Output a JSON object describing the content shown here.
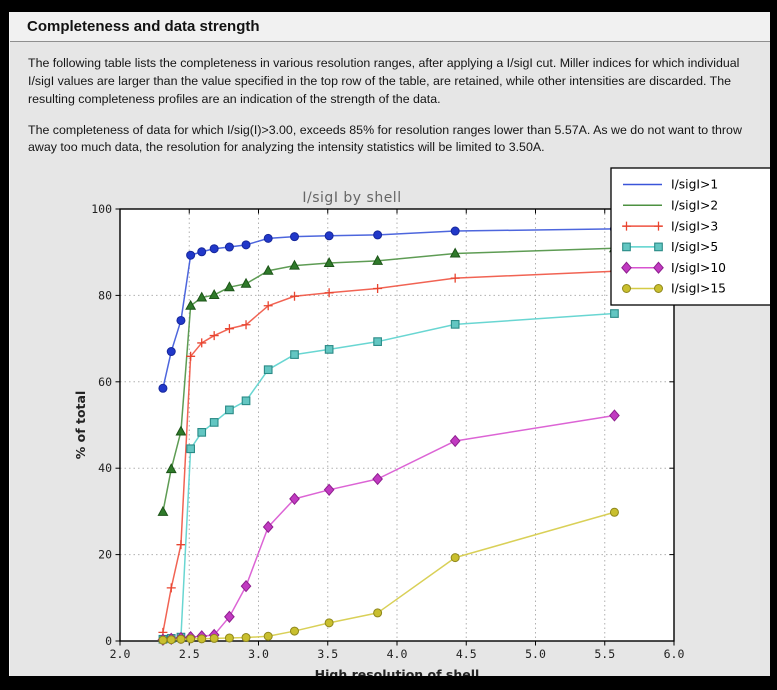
{
  "header": {
    "title": "Completeness and data strength"
  },
  "paragraphs": {
    "p1": "The following table lists the completeness in various resolution ranges, after applying a I/sigI cut. Miller indices for which individual I/sigI values are larger than the value specified in the top row of the table, are retained, while other intensities are discarded. The resulting completeness profiles are an indication of the strength of the data.",
    "p2": "The completeness of data for which I/sig(I)>3.00, exceeds  85% for resolution ranges lower than 5.57A. As we do not want to throw away too much data, the resolution for analyzing the intensity statistics will be limited to 3.50A."
  },
  "colors": {
    "page_bg": "#e6e6e6",
    "titlebar_bg": "#f1f1f1",
    "plot_bg": "#ffffff",
    "grid": "#b0b0b0",
    "frame": "#000000"
  },
  "chart_data": {
    "type": "line",
    "title": "I/sigI by shell",
    "xlabel": "High resolution of shell",
    "ylabel": "% of total",
    "xlim": [
      2.0,
      6.0
    ],
    "ylim": [
      0,
      100
    ],
    "xticks": [
      2.0,
      2.5,
      3.0,
      3.5,
      4.0,
      4.5,
      5.0,
      5.5,
      6.0
    ],
    "yticks": [
      0,
      20,
      40,
      60,
      80,
      100
    ],
    "grid": true,
    "legend_position": "top-right",
    "x": [
      2.31,
      2.37,
      2.44,
      2.51,
      2.59,
      2.68,
      2.79,
      2.91,
      3.07,
      3.26,
      3.51,
      3.86,
      4.42,
      5.57
    ],
    "series": [
      {
        "name": "I/sigI>1",
        "marker": "circle",
        "color": "#3a55d9",
        "marker_color": "#2138c9",
        "edge_color": "#16279c",
        "values": [
          58.5,
          67.0,
          74.2,
          89.3,
          90.1,
          90.8,
          91.2,
          91.7,
          93.2,
          93.6,
          93.8,
          94.0,
          94.9,
          95.4
        ]
      },
      {
        "name": "I/sigI>2",
        "marker": "triangle",
        "color": "#4d9141",
        "marker_color": "#2f7a2a",
        "edge_color": "#1c5418",
        "values": [
          29.9,
          39.8,
          48.5,
          77.6,
          79.5,
          80.1,
          81.9,
          82.7,
          85.7,
          86.9,
          87.5,
          88.0,
          89.7,
          90.9
        ]
      },
      {
        "name": "I/sigI>3",
        "marker": "plus",
        "color": "#ef5240",
        "marker_color": "#e8442f",
        "edge_color": "#e8442f",
        "values": [
          2.0,
          12.3,
          22.3,
          65.9,
          69.0,
          70.7,
          72.3,
          73.2,
          77.6,
          79.8,
          80.6,
          81.6,
          84.0,
          85.6
        ]
      },
      {
        "name": "I/sigI>5",
        "marker": "square",
        "color": "#59d2cd",
        "marker_color": "#63c6c2",
        "edge_color": "#2a8a86",
        "values": [
          0.4,
          0.6,
          0.9,
          44.5,
          48.3,
          50.6,
          53.5,
          55.6,
          62.8,
          66.3,
          67.5,
          69.3,
          73.3,
          75.8
        ]
      },
      {
        "name": "I/sigI>10",
        "marker": "diamond",
        "color": "#d853d0",
        "marker_color": "#c13ac1",
        "edge_color": "#8e1f8e",
        "values": [
          0.3,
          0.5,
          0.7,
          0.9,
          1.1,
          1.4,
          5.6,
          12.7,
          26.4,
          32.9,
          35.0,
          37.5,
          46.3,
          52.2
        ]
      },
      {
        "name": "I/sigI>15",
        "marker": "circle",
        "color": "#d5cb45",
        "marker_color": "#c9bf2e",
        "edge_color": "#8f871c",
        "values": [
          0.2,
          0.3,
          0.4,
          0.5,
          0.5,
          0.6,
          0.7,
          0.8,
          1.1,
          2.3,
          4.2,
          6.5,
          19.3,
          29.8
        ]
      }
    ]
  }
}
